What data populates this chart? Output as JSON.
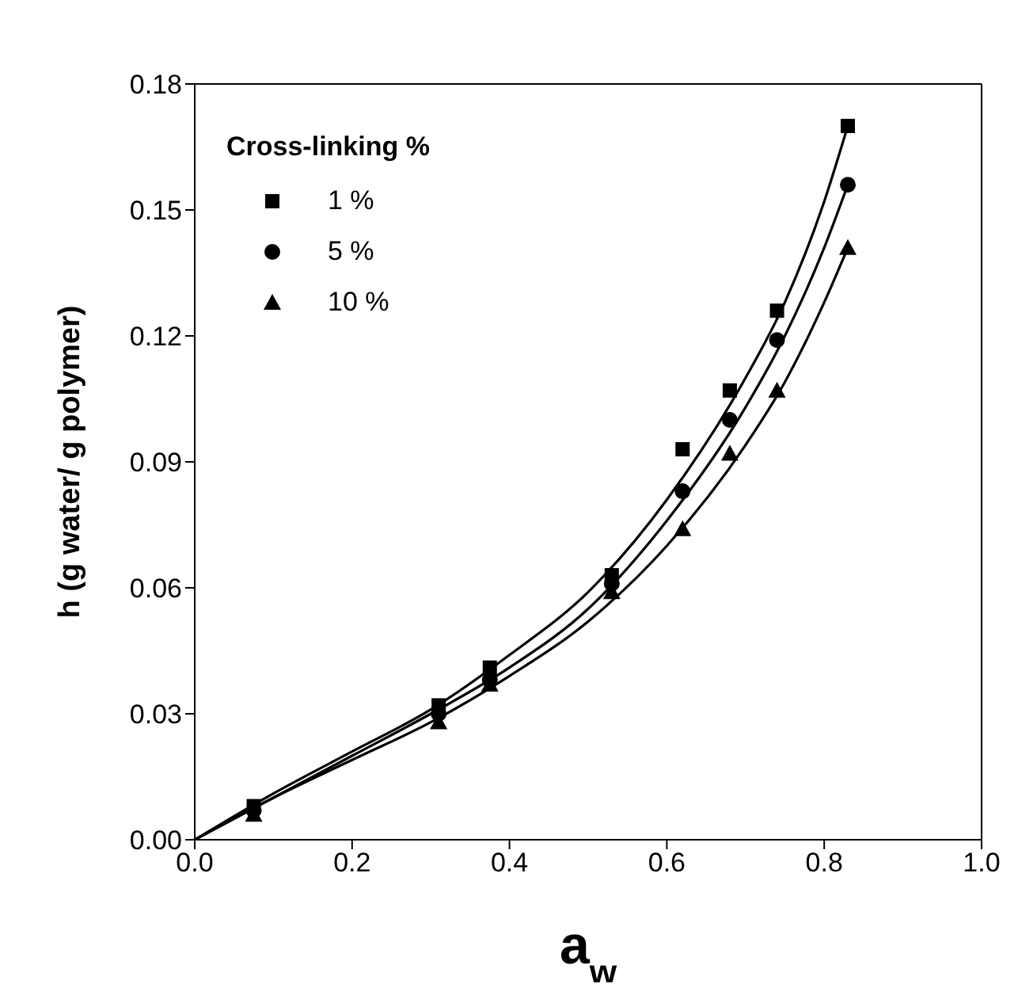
{
  "chart_data": {
    "type": "scatter",
    "xlabel": "a$_{w}$",
    "ylabel": "h (g water/ g polymer)",
    "legend_title": "Cross-linking %",
    "legend": "top left",
    "xlim": [
      0,
      1
    ],
    "xticks": [
      {
        "value": 0,
        "label": "0.0"
      },
      {
        "value": 0.2,
        "label": "0.2"
      },
      {
        "value": 0.4,
        "label": "0.4"
      },
      {
        "value": 0.6,
        "label": "0.6"
      },
      {
        "value": 0.8,
        "label": "0.8"
      },
      {
        "value": 1,
        "label": "1.0"
      }
    ],
    "ylim": [
      0,
      0.18
    ],
    "yticks": [
      {
        "value": 0,
        "label": "0.00"
      },
      {
        "value": 0.03,
        "label": "0.03"
      },
      {
        "value": 0.06,
        "label": "0.06"
      },
      {
        "value": 0.09,
        "label": "0.09"
      },
      {
        "value": 0.12,
        "label": "0.12"
      },
      {
        "value": 0.15,
        "label": "0.15"
      },
      {
        "value": 0.18,
        "label": "0.18"
      }
    ],
    "x": [
      0.075,
      0.31,
      0.375,
      0.53,
      0.62,
      0.68,
      0.74,
      0.83
    ],
    "series": [
      {
        "name": "1 %",
        "marker": "square",
        "color": "#000000",
        "values": [
          0.008,
          0.032,
          0.041,
          0.063,
          0.093,
          0.107,
          0.126,
          0.17
        ]
      },
      {
        "name": "5 %",
        "marker": "circle",
        "color": "#000000",
        "values": [
          0.007,
          0.03,
          0.038,
          0.061,
          0.083,
          0.1,
          0.119,
          0.156
        ]
      },
      {
        "name": "10 %",
        "marker": "triangle",
        "color": "#000000",
        "values": [
          0.006,
          0.028,
          0.037,
          0.059,
          0.074,
          0.092,
          0.107,
          0.141
        ]
      },
      {
        "type": "line",
        "marker": "none",
        "color": "#000000",
        "x": [
          0,
          0.1,
          0.2,
          0.3,
          0.4,
          0.5,
          0.6,
          0.7,
          0.75,
          0.8,
          0.83
        ],
        "values": [
          0,
          0.011,
          0.021,
          0.031,
          0.044,
          0.059,
          0.081,
          0.11,
          0.128,
          0.152,
          0.17
        ]
      },
      {
        "type": "line",
        "marker": "none",
        "color": "#000000",
        "x": [
          0,
          0.1,
          0.2,
          0.3,
          0.4,
          0.5,
          0.6,
          0.7,
          0.75,
          0.8,
          0.83
        ],
        "values": [
          0,
          0.01,
          0.02,
          0.03,
          0.041,
          0.055,
          0.076,
          0.103,
          0.12,
          0.141,
          0.156
        ]
      },
      {
        "type": "line",
        "marker": "none",
        "color": "#000000",
        "x": [
          0,
          0.1,
          0.2,
          0.3,
          0.4,
          0.5,
          0.6,
          0.7,
          0.75,
          0.8,
          0.83
        ],
        "values": [
          0,
          0.01,
          0.019,
          0.028,
          0.039,
          0.052,
          0.07,
          0.094,
          0.109,
          0.128,
          0.141
        ]
      }
    ]
  }
}
